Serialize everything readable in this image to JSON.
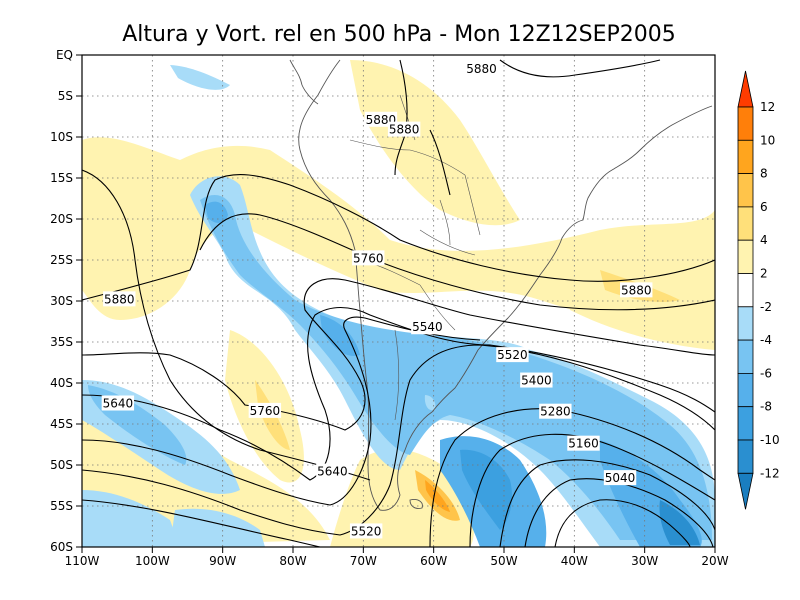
{
  "title": "Altura y Vort. rel en 500 hPa - Mon 12Z12SEP2005",
  "map": {
    "lon_range": [
      -110,
      -20
    ],
    "lat_range": [
      -60,
      0
    ],
    "lat_ticks": [
      {
        "value": 0,
        "label": "EQ"
      },
      {
        "value": -5,
        "label": "5S"
      },
      {
        "value": -10,
        "label": "10S"
      },
      {
        "value": -15,
        "label": "15S"
      },
      {
        "value": -20,
        "label": "20S"
      },
      {
        "value": -25,
        "label": "25S"
      },
      {
        "value": -30,
        "label": "30S"
      },
      {
        "value": -35,
        "label": "35S"
      },
      {
        "value": -40,
        "label": "40S"
      },
      {
        "value": -45,
        "label": "45S"
      },
      {
        "value": -50,
        "label": "50S"
      },
      {
        "value": -55,
        "label": "55S"
      },
      {
        "value": -60,
        "label": "60S"
      }
    ],
    "lon_ticks": [
      {
        "value": -110,
        "label": "110W"
      },
      {
        "value": -100,
        "label": "100W"
      },
      {
        "value": -90,
        "label": "90W"
      },
      {
        "value": -80,
        "label": "80W"
      },
      {
        "value": -70,
        "label": "70W"
      },
      {
        "value": -60,
        "label": "60W"
      },
      {
        "value": -50,
        "label": "50W"
      },
      {
        "value": -40,
        "label": "40W"
      },
      {
        "value": -30,
        "label": "30W"
      },
      {
        "value": -20,
        "label": "20W"
      }
    ],
    "contour_labels": [
      {
        "text": "5880",
        "lon": -53.2,
        "lat": -1.7
      },
      {
        "text": "5880",
        "lon": -67.5,
        "lat": -7.9
      },
      {
        "text": "5880",
        "lon": -64.2,
        "lat": -9.1
      },
      {
        "text": "5760",
        "lon": -69.3,
        "lat": -24.8
      },
      {
        "text": "5880",
        "lon": -104.7,
        "lat": -29.8
      },
      {
        "text": "5880",
        "lon": -31.2,
        "lat": -28.7
      },
      {
        "text": "5540",
        "lon": -60.9,
        "lat": -33.2
      },
      {
        "text": "5520",
        "lon": -48.8,
        "lat": -36.6
      },
      {
        "text": "5400",
        "lon": -45.4,
        "lat": -39.7
      },
      {
        "text": "5640",
        "lon": -104.9,
        "lat": -42.5
      },
      {
        "text": "5760",
        "lon": -84.0,
        "lat": -43.4
      },
      {
        "text": "5280",
        "lon": -42.7,
        "lat": -43.5
      },
      {
        "text": "5160",
        "lon": -38.7,
        "lat": -47.4
      },
      {
        "text": "5640",
        "lon": -74.4,
        "lat": -50.8
      },
      {
        "text": "5040",
        "lon": -33.5,
        "lat": -51.6
      },
      {
        "text": "5520",
        "lon": -69.6,
        "lat": -58.1
      }
    ],
    "shading_colors": {
      "neg_12": "#1a7ec0",
      "neg_10": "#2a8fd0",
      "neg_8": "#3ca0e0",
      "neg_6": "#56b0eb",
      "neg_4": "#78c4f2",
      "neg_2": "#a8dcf8",
      "pos_2": "#fff3b0",
      "pos_4": "#ffe07a",
      "pos_6": "#ffc44a",
      "pos_8": "#ffa51e",
      "pos_10": "#ff7f0a",
      "pos_12": "#ff3c00"
    }
  },
  "colorbar": {
    "labels": [
      "12",
      "10",
      "8",
      "6",
      "4",
      "2",
      "-2",
      "-4",
      "-6",
      "-8",
      "-10",
      "-12"
    ],
    "colors": [
      "#ff3c00",
      "#ff7f0a",
      "#ffa51e",
      "#ffc44a",
      "#ffe07a",
      "#fff3b0",
      "#ffffff",
      "#a8dcf8",
      "#78c4f2",
      "#56b0eb",
      "#3ca0e0",
      "#2a8fd0",
      "#1a7ec0"
    ]
  }
}
